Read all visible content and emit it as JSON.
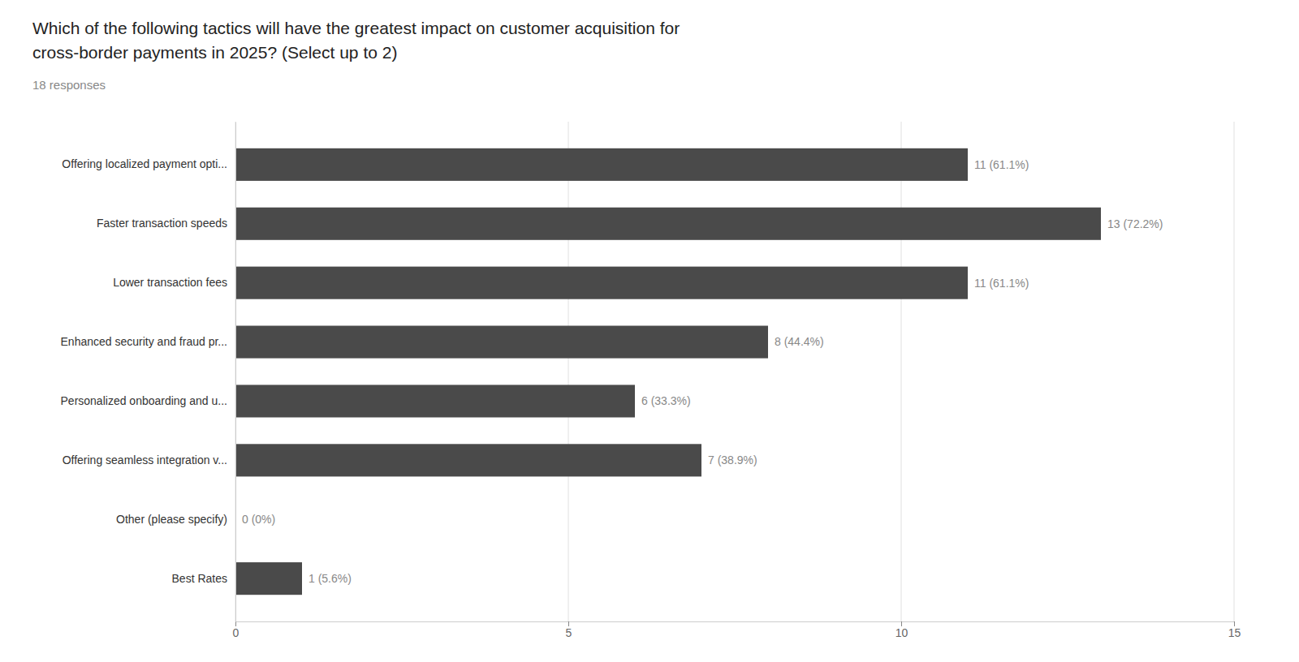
{
  "chart_data": {
    "type": "bar",
    "orientation": "horizontal",
    "title": [
      "Which of the following tactics will have the greatest impact on customer acquisition for",
      "cross-border payments in 2025? (Select up to 2)"
    ],
    "subtitle": "18 responses",
    "categories": [
      "Offering localized payment opti...",
      "Faster transaction speeds",
      "Lower transaction fees",
      "Enhanced security and fraud pr...",
      "Personalized onboarding and u...",
      "Offering seamless integration v...",
      "Other (please specify)",
      "Best Rates"
    ],
    "values": [
      11,
      13,
      11,
      8,
      6,
      7,
      0,
      1
    ],
    "value_labels": [
      "11 (61.1%)",
      "13 (72.2%)",
      "11 (61.1%)",
      "8 (44.4%)",
      "6 (33.3%)",
      "7 (38.9%)",
      "0 (0%)",
      "1 (5.6%)"
    ],
    "data_labels": true,
    "color": "#4a4a4a",
    "xlim": [
      0,
      15
    ],
    "xticks": [
      0,
      5,
      10,
      15
    ],
    "grid": true
  }
}
